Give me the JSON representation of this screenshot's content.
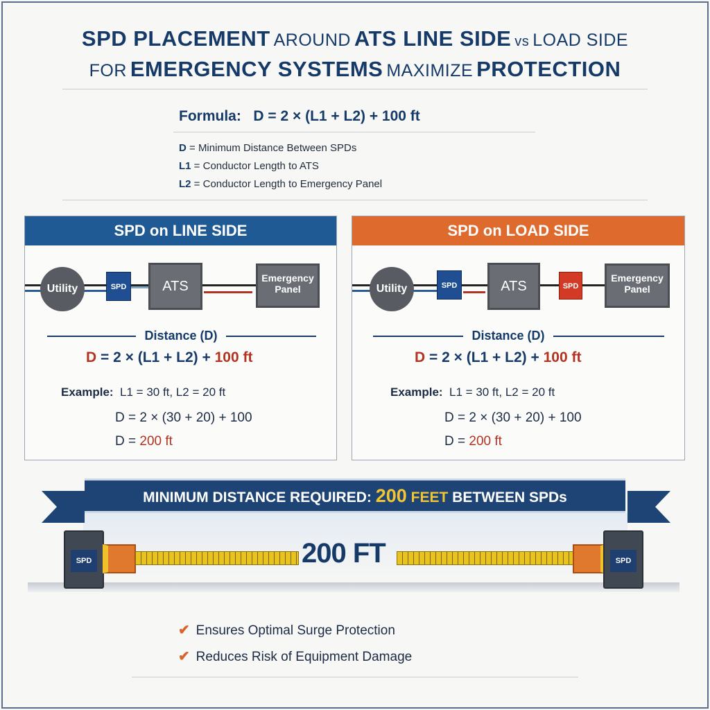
{
  "title": {
    "l1a": "SPD PLACEMENT",
    "l1b": "AROUND",
    "l1c": "ATS LINE SIDE",
    "l1d": "vs",
    "l1e": "LOAD SIDE",
    "l2a": "FOR",
    "l2b": "EMERGENCY SYSTEMS",
    "l2c": "MAXIMIZE",
    "l2d": "PROTECTION"
  },
  "formula": {
    "label": "Formula:",
    "expr": "D = 2 × (L1 + L2) + 100 ft",
    "defs": [
      {
        "sym": "D",
        "text": " = Minimum Distance Between SPDs"
      },
      {
        "sym": "L1",
        "text": " = Conductor Length to ATS"
      },
      {
        "sym": "L2",
        "text": " = Conductor Length to Emergency Panel"
      }
    ]
  },
  "panels": [
    {
      "title": "SPD on LINE SIDE",
      "color": "#1f5a94",
      "utility": "Utility",
      "spd": "SPD",
      "ats": "ATS",
      "panel1": "Emergency",
      "panel2": "Panel",
      "distance": "Distance (D)",
      "eq_d": "D",
      "eq_mid": " = 2 × (L1 + L2) + ",
      "eq_end": "100 ft",
      "example_label": "Example:",
      "example_vals": "L1 = 30 ft, L2 = 20 ft",
      "calc": "D = 2 × (30 + 20) + 100",
      "res_d": "D = ",
      "res_v": "200 ft"
    },
    {
      "title": "SPD on LOAD SIDE",
      "color": "#df6a2e",
      "utility": "Utility",
      "spd": "SPD",
      "spd2": "SPD",
      "ats": "ATS",
      "panel1": "Emergency",
      "panel2": "Panel",
      "distance": "Distance (D)",
      "eq_d": "D",
      "eq_mid": " = 2 × (L1 + L2) + ",
      "eq_end": "100 ft",
      "example_label": "Example:",
      "example_vals": "L1 = 30 ft, L2 = 20 ft",
      "calc": "D = 2 × (30 + 20) + 100",
      "res_d": "D = ",
      "res_v": "200 ft"
    }
  ],
  "banner": {
    "a": "MINIMUM DISTANCE REQUIRED:",
    "b": "200",
    "c": "FEET",
    "d": "BETWEEN SPDs"
  },
  "measure": {
    "label": "200 FT",
    "left_spd": "SPD",
    "right_spd": "SPD"
  },
  "benefits": [
    "Ensures Optimal Surge Protection",
    "Reduces Risk of Equipment Damage"
  ]
}
